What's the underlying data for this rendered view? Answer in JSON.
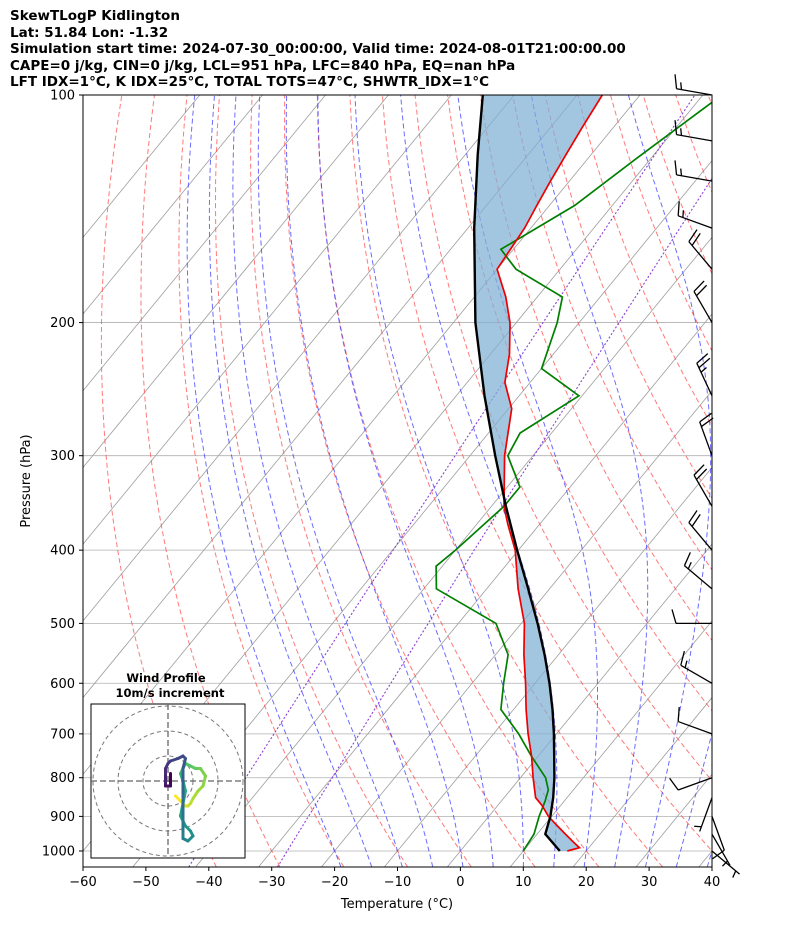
{
  "header": {
    "lines": [
      "SkewTLogP Kidlington",
      "Lat: 51.84   Lon: -1.32",
      "Simulation start time: 2024-07-30_00:00:00, Valid time: 2024-08-01T21:00:00.00",
      "CAPE=0 j/kg, CIN=0 j/kg, LCL=951 hPa, LFC=840 hPa, EQ=nan hPa",
      "LFT IDX=1°C, K IDX=25°C, TOTAL TOTS=47°C, SHWTR_IDX=1°C"
    ]
  },
  "colors": {
    "temperature": "#ee0000",
    "dewpoint": "#008000",
    "parcel": "#000000",
    "cape_fill": "#7fb0d4",
    "dry_adiabat": "#ff4d4d",
    "moist_adiabat": "#3b3bff",
    "mixing_ratio": "#8b3fd9",
    "isotherm": "#9e9e9e"
  },
  "chart_data": {
    "type": "skewt-logp",
    "title": "SkewTLogP Kidlington",
    "xlabel": "Temperature (°C)",
    "ylabel": "Pressure (hPa)",
    "xlim": [
      -60,
      40
    ],
    "ylim": [
      1050,
      100
    ],
    "x_ticks": [
      "−60",
      "−50",
      "−40",
      "−30",
      "−20",
      "−10",
      "0",
      "10",
      "20",
      "30",
      "40"
    ],
    "x_tick_values": [
      -60,
      -50,
      -40,
      -30,
      -20,
      -10,
      0,
      10,
      20,
      30,
      40
    ],
    "y_ticks": [
      "1000",
      "900",
      "800",
      "700",
      "600",
      "500",
      "400",
      "300",
      "200",
      "100"
    ],
    "y_tick_values": [
      1000,
      900,
      800,
      700,
      600,
      500,
      400,
      300,
      200,
      100
    ],
    "series": [
      {
        "name": "temperature",
        "points": [
          [
            1000,
            17
          ],
          [
            990,
            18.5
          ],
          [
            975,
            17
          ],
          [
            950,
            14.5
          ],
          [
            925,
            12
          ],
          [
            900,
            9.5
          ],
          [
            870,
            7
          ],
          [
            850,
            5
          ],
          [
            800,
            2
          ],
          [
            750,
            -1
          ],
          [
            700,
            -4.5
          ],
          [
            650,
            -8
          ],
          [
            600,
            -11.5
          ],
          [
            550,
            -15.5
          ],
          [
            500,
            -19.5
          ],
          [
            450,
            -25
          ],
          [
            400,
            -30.5
          ],
          [
            370,
            -35
          ],
          [
            350,
            -38
          ],
          [
            300,
            -44.5
          ],
          [
            260,
            -49.5
          ],
          [
            240,
            -54
          ],
          [
            220,
            -57
          ],
          [
            200,
            -61
          ],
          [
            185,
            -65
          ],
          [
            170,
            -70
          ],
          [
            150,
            -71
          ],
          [
            140,
            -72
          ],
          [
            130,
            -73
          ],
          [
            120,
            -74
          ],
          [
            110,
            -75
          ],
          [
            100,
            -76
          ]
        ]
      },
      {
        "name": "dewpoint",
        "points": [
          [
            1000,
            10
          ],
          [
            980,
            9.8
          ],
          [
            950,
            9.5
          ],
          [
            900,
            8
          ],
          [
            860,
            7
          ],
          [
            830,
            6
          ],
          [
            800,
            4
          ],
          [
            750,
            -1
          ],
          [
            700,
            -6
          ],
          [
            650,
            -12
          ],
          [
            600,
            -15
          ],
          [
            550,
            -18
          ],
          [
            500,
            -24
          ],
          [
            450,
            -38
          ],
          [
            420,
            -41
          ],
          [
            400,
            -40
          ],
          [
            350,
            -38
          ],
          [
            330,
            -38
          ],
          [
            300,
            -44
          ],
          [
            280,
            -45
          ],
          [
            250,
            -40.5
          ],
          [
            230,
            -50
          ],
          [
            200,
            -53.5
          ],
          [
            185,
            -56
          ],
          [
            170,
            -67
          ],
          [
            160,
            -72
          ],
          [
            140,
            -66
          ],
          [
            120,
            -62
          ],
          [
            100,
            -57
          ]
        ]
      },
      {
        "name": "parcel",
        "points": [
          [
            1000,
            15.8
          ],
          [
            950,
            11.3
          ],
          [
            920,
            10.4
          ],
          [
            900,
            9.8
          ],
          [
            850,
            7.8
          ],
          [
            800,
            5.4
          ],
          [
            750,
            2.6
          ],
          [
            700,
            -0.4
          ],
          [
            650,
            -3.8
          ],
          [
            600,
            -7.7
          ],
          [
            550,
            -12.2
          ],
          [
            500,
            -17.4
          ],
          [
            450,
            -23.4
          ],
          [
            400,
            -30.2
          ],
          [
            350,
            -37.7
          ],
          [
            300,
            -46
          ],
          [
            250,
            -55.5
          ],
          [
            200,
            -66.5
          ],
          [
            150,
            -79
          ],
          [
            120,
            -88
          ],
          [
            100,
            -95
          ]
        ]
      }
    ],
    "wind_barbs": [
      {
        "pressure": 1000,
        "speed_kt": 5,
        "dir_deg": 130
      },
      {
        "pressure": 950,
        "speed_kt": 5,
        "dir_deg": 150
      },
      {
        "pressure": 900,
        "speed_kt": 10,
        "dir_deg": 160
      },
      {
        "pressure": 850,
        "speed_kt": 5,
        "dir_deg": 200
      },
      {
        "pressure": 800,
        "speed_kt": 10,
        "dir_deg": 250
      },
      {
        "pressure": 700,
        "speed_kt": 10,
        "dir_deg": 290
      },
      {
        "pressure": 600,
        "speed_kt": 15,
        "dir_deg": 300
      },
      {
        "pressure": 500,
        "speed_kt": 10,
        "dir_deg": 270
      },
      {
        "pressure": 450,
        "speed_kt": 15,
        "dir_deg": 310
      },
      {
        "pressure": 400,
        "speed_kt": 20,
        "dir_deg": 320
      },
      {
        "pressure": 350,
        "speed_kt": 20,
        "dir_deg": 330
      },
      {
        "pressure": 300,
        "speed_kt": 20,
        "dir_deg": 340
      },
      {
        "pressure": 250,
        "speed_kt": 25,
        "dir_deg": 335
      },
      {
        "pressure": 200,
        "speed_kt": 20,
        "dir_deg": 330
      },
      {
        "pressure": 170,
        "speed_kt": 20,
        "dir_deg": 320
      },
      {
        "pressure": 150,
        "speed_kt": 15,
        "dir_deg": 290
      },
      {
        "pressure": 130,
        "speed_kt": 15,
        "dir_deg": 280
      },
      {
        "pressure": 115,
        "speed_kt": 15,
        "dir_deg": 280
      },
      {
        "pressure": 100,
        "speed_kt": 15,
        "dir_deg": 280
      }
    ],
    "hodograph": {
      "title": "Wind Profile",
      "subtitle": "10m/s increment",
      "ring_increment_ms": 10,
      "points": [
        [
          3,
          -6
        ],
        [
          5,
          -8
        ],
        [
          7,
          -10
        ],
        [
          8,
          -10
        ],
        [
          9,
          -9
        ],
        [
          10,
          -7
        ],
        [
          12,
          -4
        ],
        [
          14,
          -2
        ],
        [
          15,
          2
        ],
        [
          13,
          5
        ],
        [
          11,
          5
        ],
        [
          9,
          6
        ],
        [
          7,
          7
        ],
        [
          6,
          5
        ],
        [
          5,
          3
        ],
        [
          6,
          0
        ],
        [
          7,
          -4
        ],
        [
          6,
          -9
        ],
        [
          5,
          -14
        ],
        [
          7,
          -18
        ],
        [
          9,
          -20
        ],
        [
          10,
          -22
        ],
        [
          8,
          -24
        ],
        [
          6,
          -23
        ],
        [
          6,
          -20
        ],
        [
          6,
          -14
        ],
        [
          6,
          -10
        ],
        [
          6,
          -5
        ],
        [
          6,
          0
        ],
        [
          6,
          5
        ],
        [
          7,
          9
        ],
        [
          6,
          10
        ],
        [
          4,
          9
        ],
        [
          1,
          8
        ],
        [
          0,
          7
        ],
        [
          -1,
          5
        ],
        [
          -1,
          2
        ],
        [
          -1,
          -1
        ],
        [
          -1,
          -2
        ],
        [
          1,
          -2
        ],
        [
          1,
          0
        ],
        [
          1,
          3
        ]
      ]
    }
  }
}
